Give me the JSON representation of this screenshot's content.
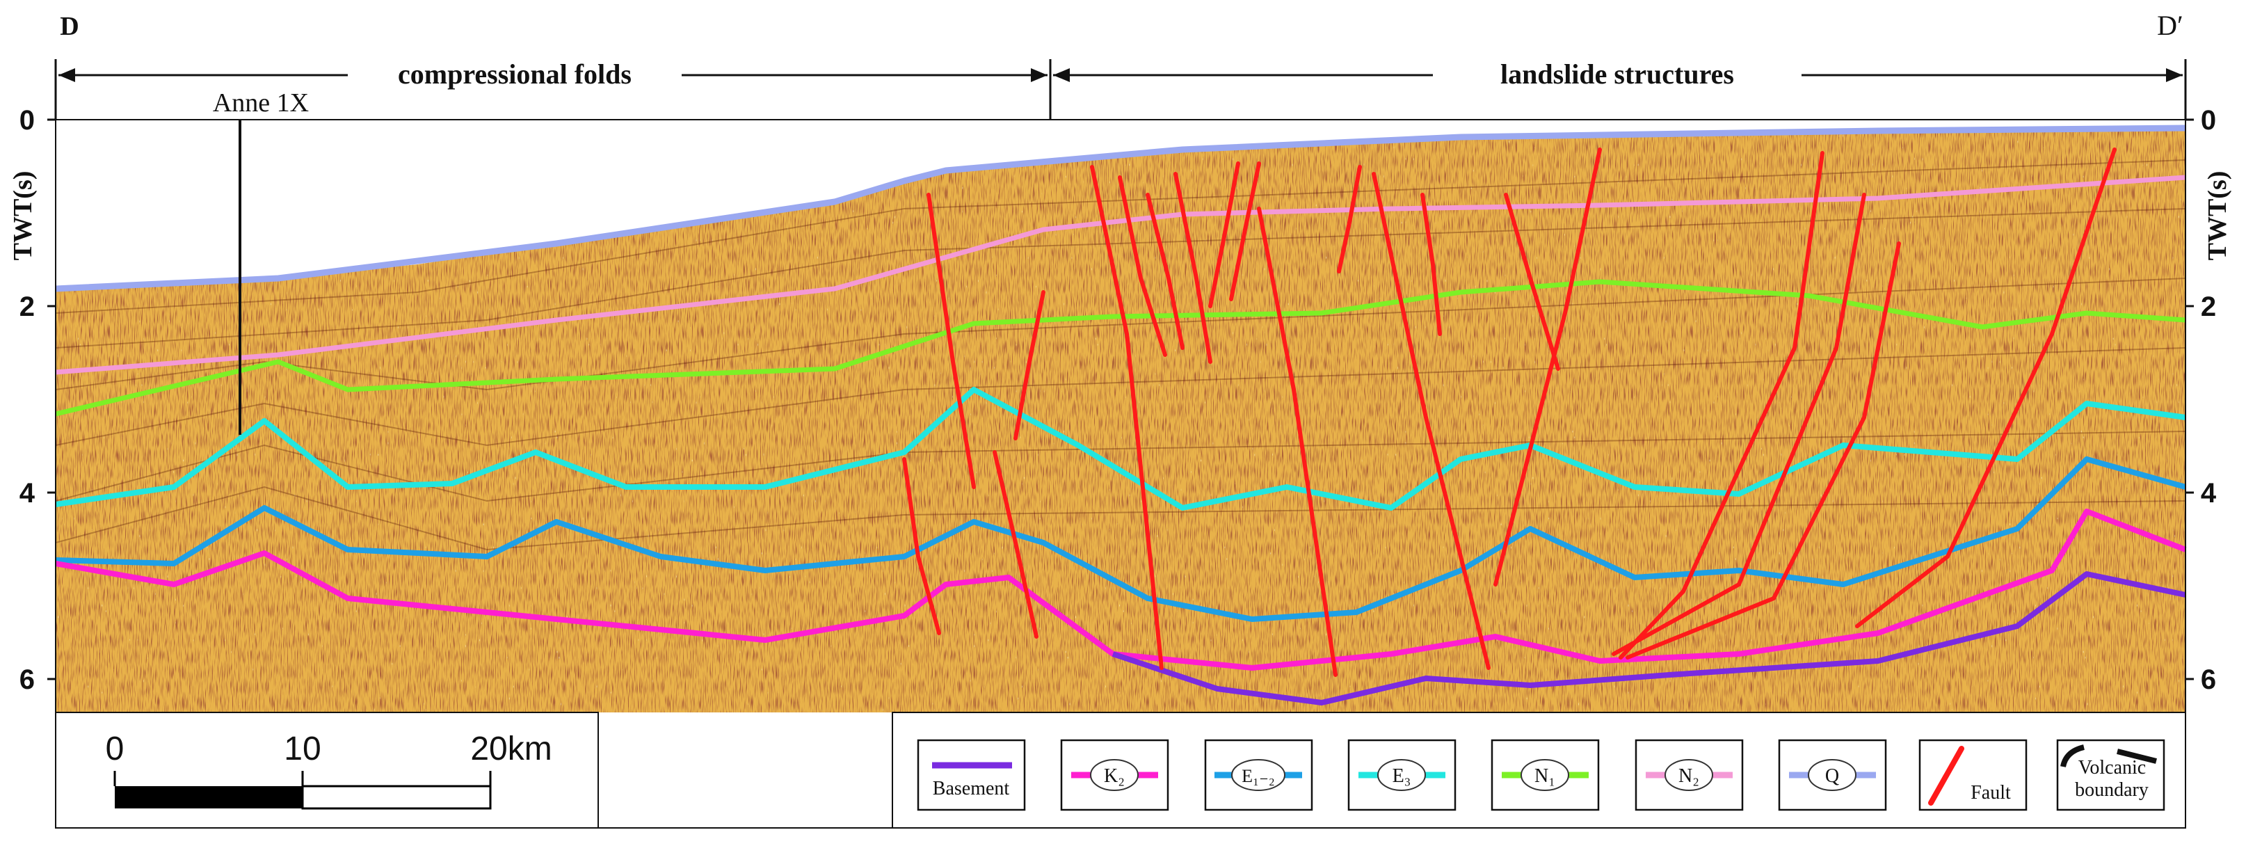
{
  "profile": {
    "start_label": "D",
    "end_label": "D′",
    "segments": [
      {
        "label": "compressional folds"
      },
      {
        "label": "landslide structures"
      }
    ],
    "well_label": "Anne 1X"
  },
  "axis": {
    "label": "TWT(s)",
    "ticks": [
      "0",
      "2",
      "4",
      "6"
    ]
  },
  "scale_bar": {
    "ticks": [
      "0",
      "10",
      "20km"
    ]
  },
  "legend": [
    {
      "id": "basement",
      "label": "Basement",
      "color": "#7a2be0",
      "style": "line"
    },
    {
      "id": "k2",
      "label": "K₂",
      "color": "#ff1fd0",
      "style": "oval"
    },
    {
      "id": "e12",
      "label": "E₁₋₂",
      "color": "#1ea0e6",
      "style": "oval"
    },
    {
      "id": "e3",
      "label": "E₃",
      "color": "#22e6e0",
      "style": "oval"
    },
    {
      "id": "n1",
      "label": "N₁",
      "color": "#7df026",
      "style": "oval"
    },
    {
      "id": "n2",
      "label": "N₂",
      "color": "#f49ad6",
      "style": "oval"
    },
    {
      "id": "q",
      "label": "Q",
      "color": "#9aa8f0",
      "style": "oval"
    },
    {
      "id": "fault",
      "label": "Fault",
      "color": "#ff1a1a",
      "style": "fault"
    },
    {
      "id": "volcanic",
      "label": "Volcanic boundary",
      "color": "#111111",
      "style": "volcanic"
    }
  ],
  "colors": {
    "seismic_base": "#e8b24a",
    "seismic_dark": "#6e1f0a",
    "seismic_light": "#fff1a6"
  }
}
